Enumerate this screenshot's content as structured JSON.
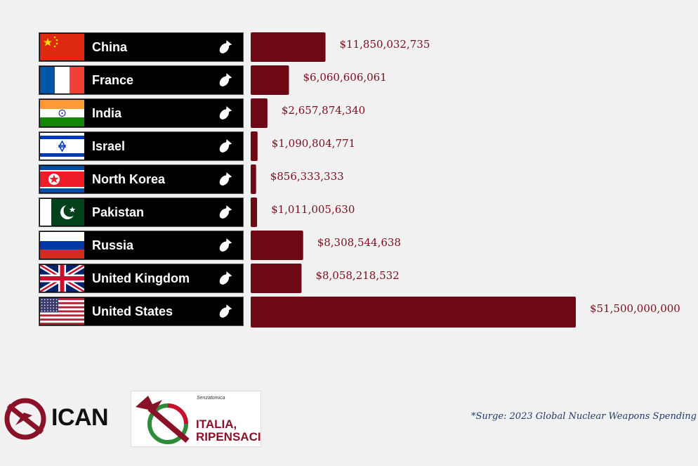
{
  "chart_data": {
    "type": "bar",
    "orientation": "horizontal",
    "title": "",
    "categories": [
      "China",
      "France",
      "India",
      "Israel",
      "North Korea",
      "Pakistan",
      "Russia",
      "United Kingdom",
      "United States"
    ],
    "values": [
      11850032735,
      6060606061,
      2657874340,
      1090804771,
      856333333,
      1011005630,
      8308544638,
      8058218532,
      51500000000
    ],
    "value_labels": [
      "$11,850,032,735",
      "$6,060,606,061",
      "$2,657,874,340",
      "$1,090,804,771",
      "$856,333,333",
      "$1,011,005,630",
      "$8,308,544,638",
      "$8,058,218,532",
      "$51,500,000,000"
    ],
    "xlim": [
      0,
      51500000000
    ],
    "bar_color": "#6e0814",
    "label_color": "#7a0d1c"
  },
  "footnote": "*Surge: 2023 Global Nuclear Weapons Spending",
  "logos": {
    "ican": "ICAN",
    "italia_line1": "ITALIA,",
    "italia_line2": "RIPENSACI",
    "senzatomica": "Senzatomica"
  },
  "icons": {
    "row_icon": "bomb-icon"
  }
}
